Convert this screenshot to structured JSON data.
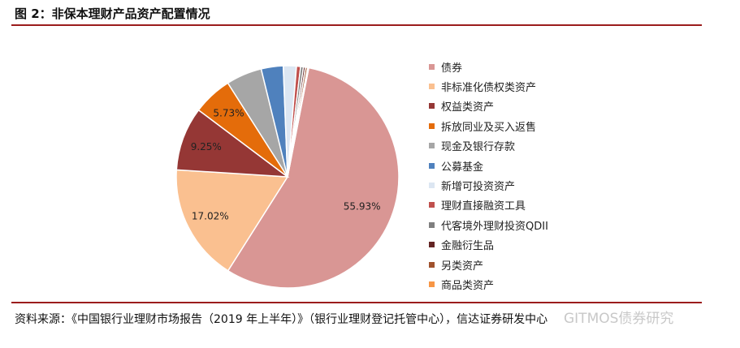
{
  "figure": {
    "title": "图 2：非保本理财产品资产配置情况",
    "source": "资料来源：《中国银行业理财市场报告（2019 年上半年）》（银行业理财登记托管中心），信达证券研发中心",
    "watermark": "GITMOS债券研究",
    "colors": {
      "rule": "#9b1c1c"
    }
  },
  "chart_data": {
    "type": "pie",
    "title": "",
    "legend_position": "right",
    "slices": [
      {
        "label": "债券",
        "value": 55.93,
        "color": "#d99694",
        "data_label": "55.93%"
      },
      {
        "label": "非标准化债权类资产",
        "value": 17.02,
        "color": "#fac090",
        "data_label": "17.02%"
      },
      {
        "label": "权益类资产",
        "value": 9.25,
        "color": "#953735",
        "data_label": "9.25%"
      },
      {
        "label": "拆放同业及买入返售",
        "value": 5.73,
        "color": "#e46c0a",
        "data_label": "5.73%"
      },
      {
        "label": "现金及银行存款",
        "value": 5.2,
        "color": "#a6a6a6",
        "data_label": ""
      },
      {
        "label": "公募基金",
        "value": 3.2,
        "color": "#4f81bd",
        "data_label": ""
      },
      {
        "label": "新增可投资资产",
        "value": 1.9,
        "color": "#dce6f2",
        "data_label": ""
      },
      {
        "label": "理财直接融资工具",
        "value": 0.6,
        "color": "#c0504d",
        "data_label": ""
      },
      {
        "label": "代客境外理财投资QDII",
        "value": 0.4,
        "color": "#7f7f7f",
        "data_label": ""
      },
      {
        "label": "金融衍生品",
        "value": 0.3,
        "color": "#632423",
        "data_label": ""
      },
      {
        "label": "另类资产",
        "value": 0.3,
        "color": "#a0522d",
        "data_label": ""
      },
      {
        "label": "商品类资产",
        "value": 0.17,
        "color": "#f79646",
        "data_label": ""
      }
    ]
  }
}
